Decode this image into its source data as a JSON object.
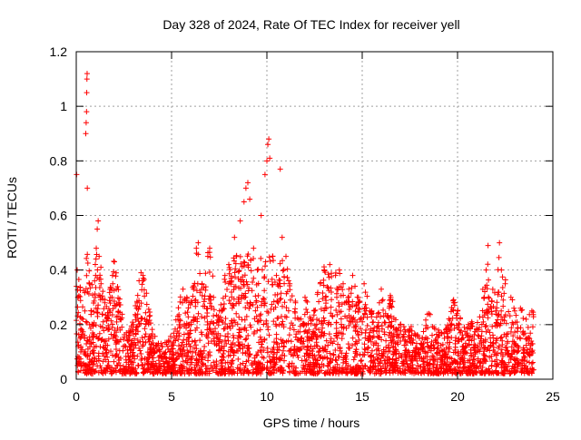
{
  "chart_data": {
    "type": "scatter",
    "title": "Day 328 of 2024, Rate Of TEC Index for receiver yell",
    "xlabel": "GPS time / hours",
    "ylabel": "ROTI / TECUs",
    "xlim": [
      0,
      25
    ],
    "ylim": [
      0,
      1.2
    ],
    "xticks": [
      0,
      5,
      10,
      15,
      20,
      25
    ],
    "xtick_labels": [
      "0",
      "5",
      "10",
      "15",
      "20",
      "25"
    ],
    "yticks": [
      0,
      0.2,
      0.4,
      0.6,
      0.8,
      1.0,
      1.2
    ],
    "ytick_labels": [
      "0",
      "0.2",
      "0.4",
      "0.6",
      "0.8",
      "1",
      "1.2"
    ],
    "grid": true,
    "marker": "+",
    "color": "#ff0000",
    "series": [
      {
        "name": "ROTI",
        "points_note": "dense per-satellite ROTI samples, 0–24 h",
        "points": [
          [
            0.02,
            0.75
          ],
          [
            0.05,
            0.4
          ],
          [
            0.08,
            0.3
          ],
          [
            0.1,
            0.12
          ],
          [
            0.15,
            0.08
          ],
          [
            0.2,
            0.15
          ],
          [
            0.3,
            0.18
          ],
          [
            0.35,
            0.22
          ],
          [
            0.45,
            0.25
          ],
          [
            0.5,
            0.9
          ],
          [
            0.52,
            0.94
          ],
          [
            0.54,
            0.98
          ],
          [
            0.55,
            1.05
          ],
          [
            0.56,
            1.1
          ],
          [
            0.57,
            1.12
          ],
          [
            0.58,
            0.7
          ],
          [
            0.6,
            0.32
          ],
          [
            0.7,
            0.2
          ],
          [
            0.8,
            0.25
          ],
          [
            1.0,
            0.3
          ],
          [
            1.05,
            0.48
          ],
          [
            1.1,
            0.55
          ],
          [
            1.15,
            0.58
          ],
          [
            1.2,
            0.45
          ],
          [
            1.3,
            0.35
          ],
          [
            1.5,
            0.28
          ],
          [
            1.6,
            0.22
          ],
          [
            1.8,
            0.3
          ],
          [
            1.9,
            0.38
          ],
          [
            2.0,
            0.43
          ],
          [
            2.1,
            0.33
          ],
          [
            2.3,
            0.18
          ],
          [
            2.6,
            0.12
          ],
          [
            3.0,
            0.2
          ],
          [
            3.2,
            0.28
          ],
          [
            3.4,
            0.39
          ],
          [
            3.5,
            0.38
          ],
          [
            3.6,
            0.22
          ],
          [
            4.0,
            0.15
          ],
          [
            4.5,
            0.12
          ],
          [
            5.0,
            0.1
          ],
          [
            5.4,
            0.2
          ],
          [
            5.6,
            0.33
          ],
          [
            5.8,
            0.3
          ],
          [
            6.2,
            0.22
          ],
          [
            6.3,
            0.48
          ],
          [
            6.4,
            0.5
          ],
          [
            6.6,
            0.35
          ],
          [
            6.9,
            0.45
          ],
          [
            7.0,
            0.48
          ],
          [
            7.2,
            0.3
          ],
          [
            7.5,
            0.22
          ],
          [
            7.8,
            0.38
          ],
          [
            8.0,
            0.42
          ],
          [
            8.3,
            0.52
          ],
          [
            8.4,
            0.45
          ],
          [
            8.6,
            0.58
          ],
          [
            8.8,
            0.65
          ],
          [
            8.9,
            0.7
          ],
          [
            9.0,
            0.72
          ],
          [
            9.1,
            0.66
          ],
          [
            9.3,
            0.48
          ],
          [
            9.5,
            0.4
          ],
          [
            9.7,
            0.6
          ],
          [
            9.9,
            0.75
          ],
          [
            10.0,
            0.8
          ],
          [
            10.05,
            0.86
          ],
          [
            10.1,
            0.88
          ],
          [
            10.15,
            0.81
          ],
          [
            10.3,
            0.45
          ],
          [
            10.5,
            0.38
          ],
          [
            10.7,
            0.77
          ],
          [
            10.8,
            0.52
          ],
          [
            11.0,
            0.45
          ],
          [
            11.2,
            0.35
          ],
          [
            11.5,
            0.28
          ],
          [
            12.0,
            0.3
          ],
          [
            12.5,
            0.25
          ],
          [
            12.8,
            0.35
          ],
          [
            13.0,
            0.4
          ],
          [
            13.3,
            0.42
          ],
          [
            13.6,
            0.38
          ],
          [
            13.8,
            0.4
          ],
          [
            14.0,
            0.35
          ],
          [
            14.3,
            0.33
          ],
          [
            14.5,
            0.38
          ],
          [
            14.8,
            0.3
          ],
          [
            15.1,
            0.35
          ],
          [
            15.5,
            0.25
          ],
          [
            15.9,
            0.28
          ],
          [
            16.0,
            0.33
          ],
          [
            16.5,
            0.3
          ],
          [
            17.0,
            0.2
          ],
          [
            17.5,
            0.18
          ],
          [
            18.0,
            0.15
          ],
          [
            18.5,
            0.24
          ],
          [
            19.0,
            0.18
          ],
          [
            19.5,
            0.15
          ],
          [
            19.8,
            0.28
          ],
          [
            20.0,
            0.25
          ],
          [
            20.3,
            0.12
          ],
          [
            20.7,
            0.2
          ],
          [
            21.0,
            0.18
          ],
          [
            21.4,
            0.3
          ],
          [
            21.5,
            0.4
          ],
          [
            21.6,
            0.49
          ],
          [
            22.0,
            0.25
          ],
          [
            22.2,
            0.5
          ],
          [
            22.3,
            0.4
          ],
          [
            22.5,
            0.35
          ],
          [
            22.8,
            0.3
          ],
          [
            23.0,
            0.25
          ],
          [
            23.3,
            0.26
          ],
          [
            23.6,
            0.22
          ],
          [
            23.9,
            0.25
          ]
        ]
      }
    ]
  }
}
